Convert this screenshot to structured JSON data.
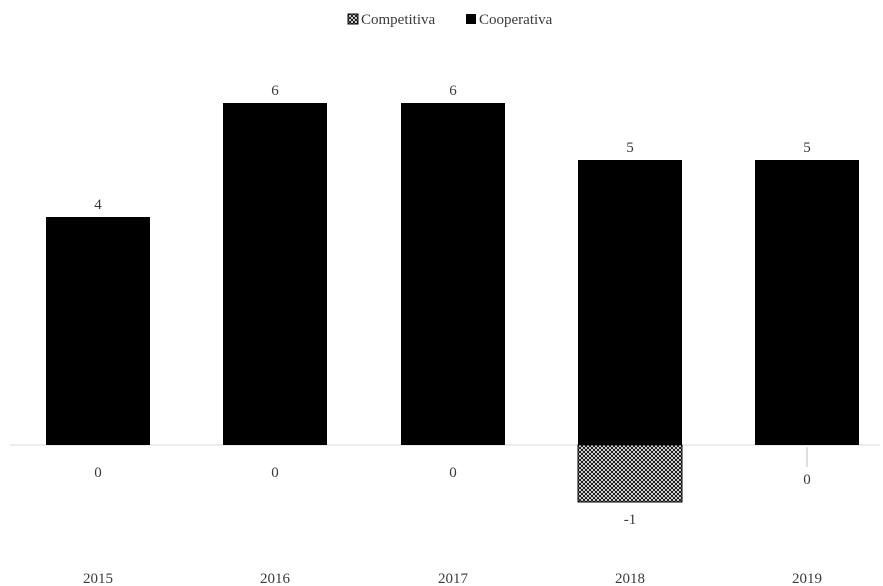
{
  "chart_data": {
    "type": "bar",
    "categories": [
      "2015",
      "2016",
      "2017",
      "2018",
      "2019"
    ],
    "series": [
      {
        "name": "Competitiva",
        "values": [
          0,
          0,
          0,
          -1,
          0
        ],
        "labels": [
          "0",
          "0",
          "0",
          "-1",
          "0"
        ],
        "color": "#000000",
        "pattern": "crosshatch"
      },
      {
        "name": "Cooperativa",
        "values": [
          4,
          6,
          6,
          5,
          5
        ],
        "labels": [
          "4",
          "6",
          "6",
          "5",
          "5"
        ],
        "color": "#000000",
        "pattern": "solid"
      }
    ],
    "stacked": true,
    "ylim": [
      -1.3,
      6.8
    ],
    "grid": false,
    "legend": "top-center",
    "title": "",
    "xlabel": "",
    "ylabel": ""
  }
}
